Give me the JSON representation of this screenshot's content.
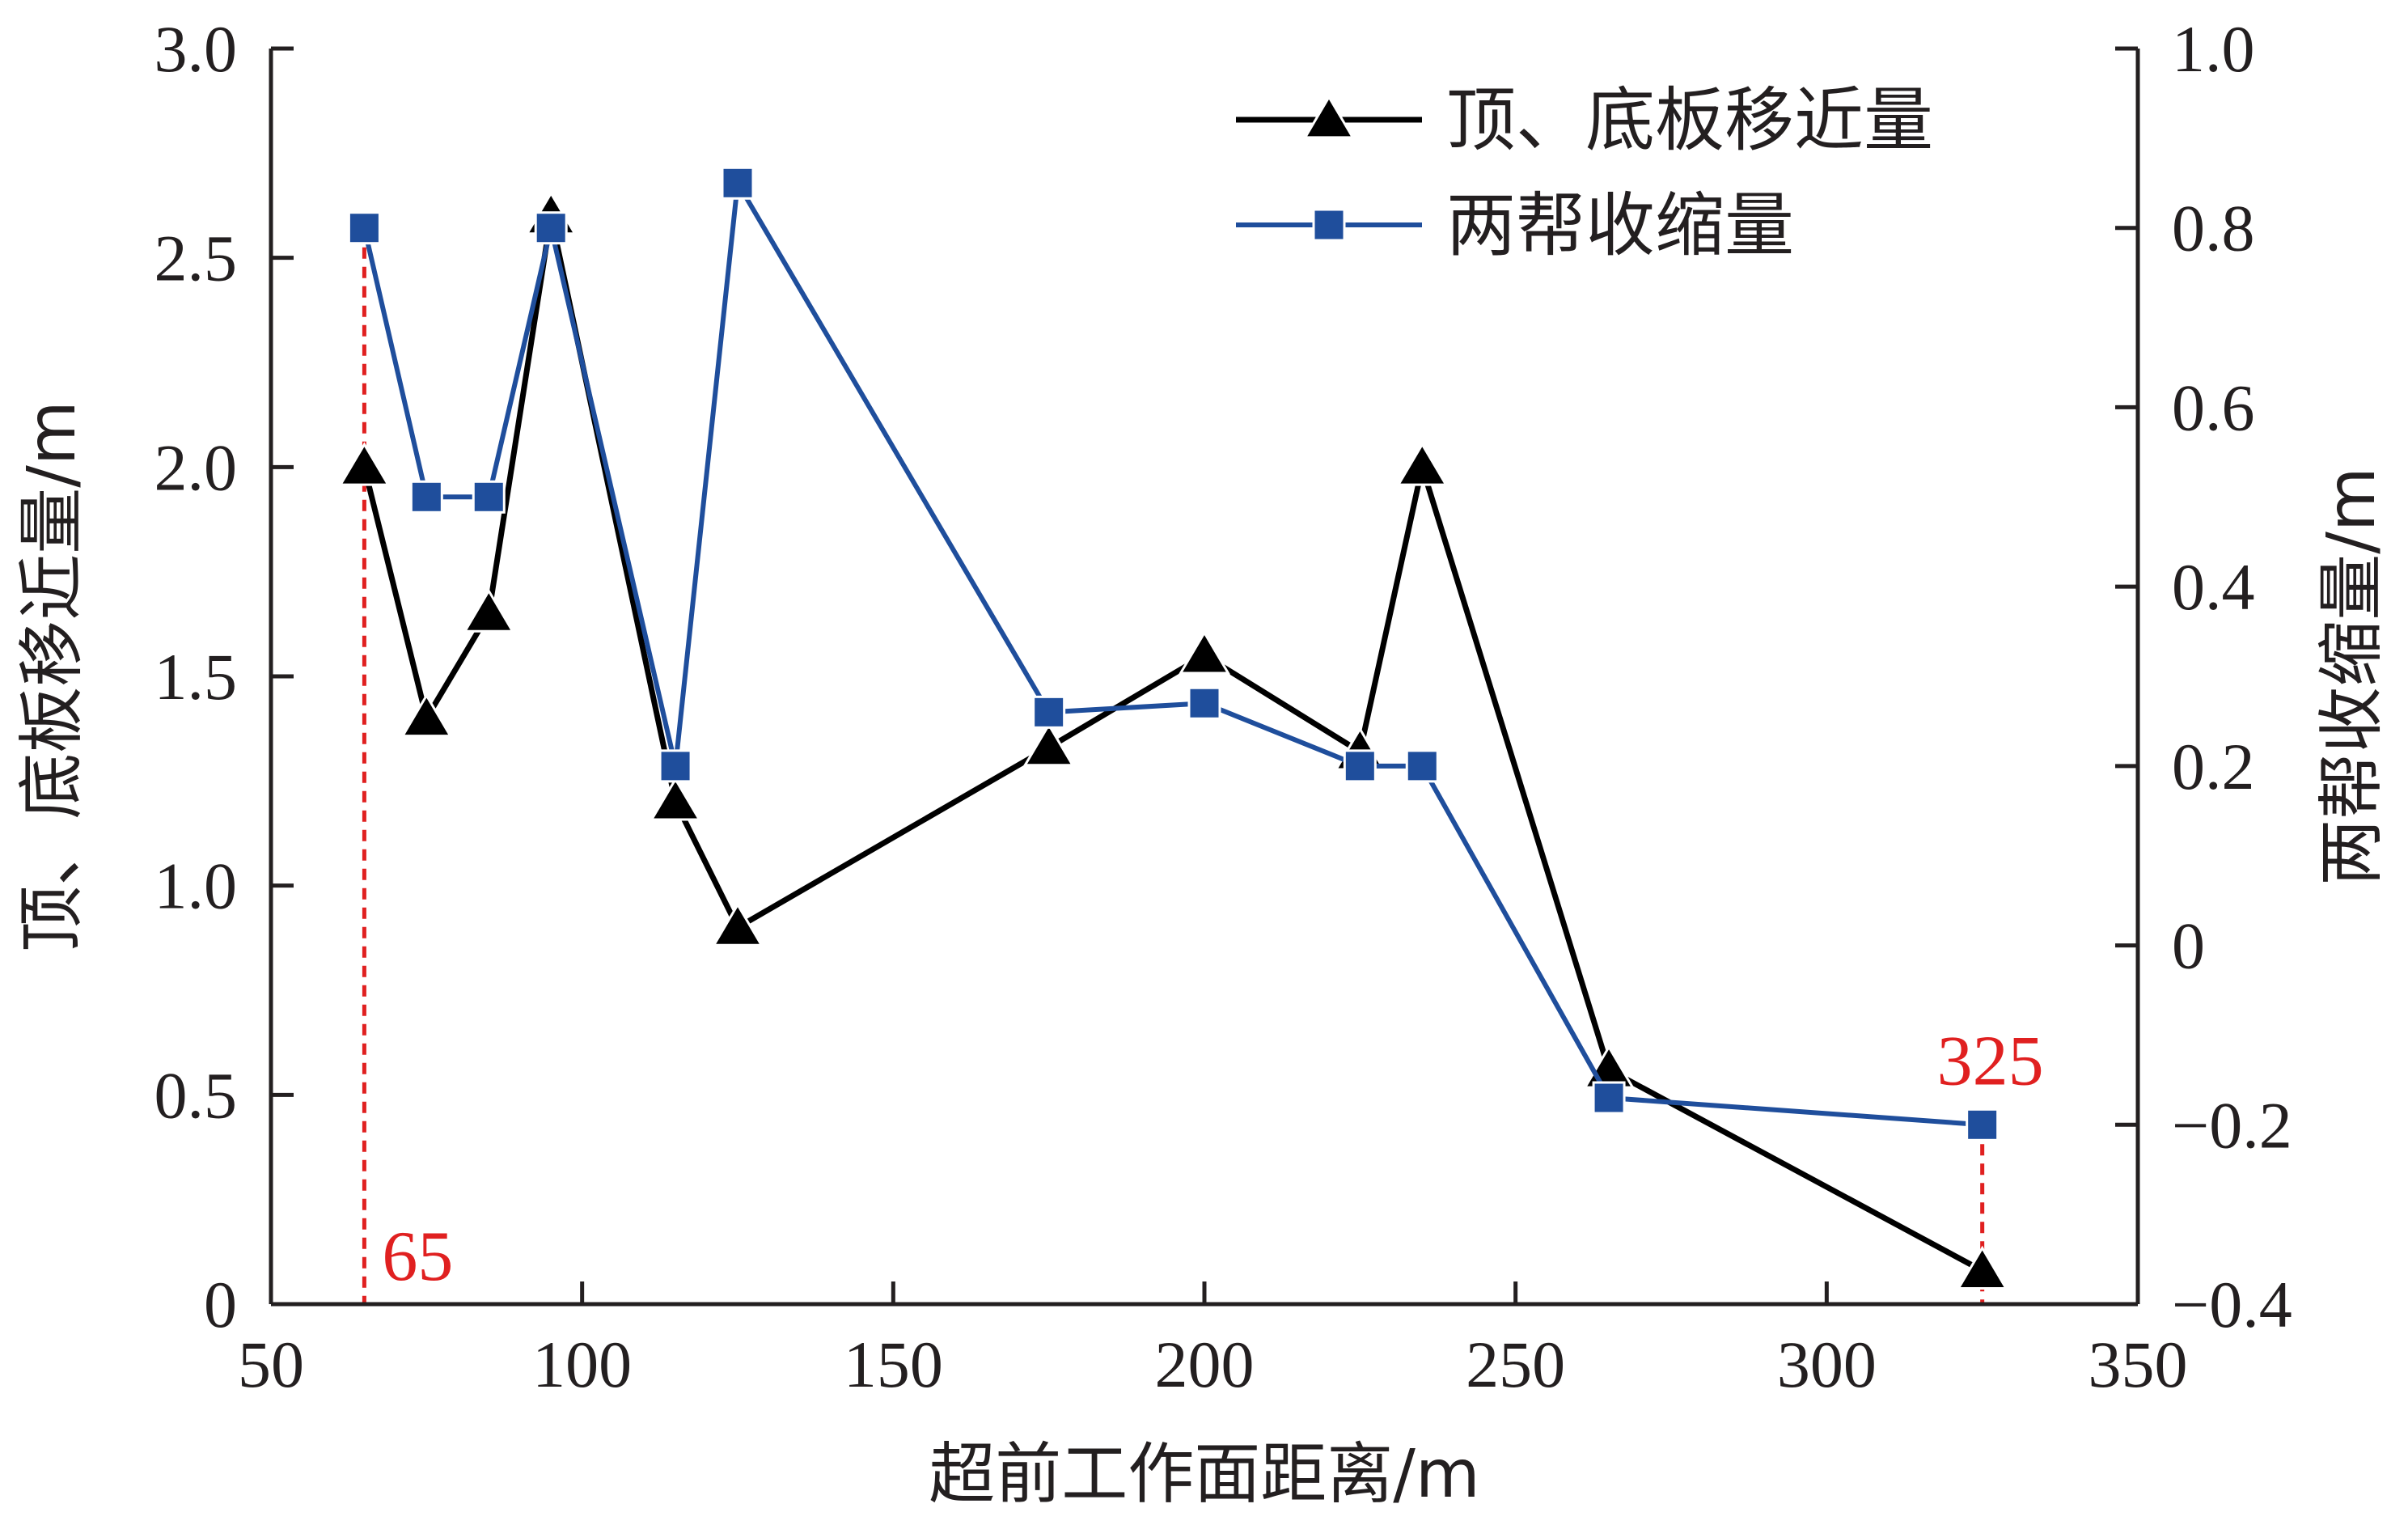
{
  "chart_data": {
    "type": "line",
    "xlabel": "超前工作面距离/m",
    "ylabel": "顶、底板移近量/m",
    "y2label": "两帮收缩量/m",
    "xlim": [
      50,
      350
    ],
    "ylim": [
      0,
      3.0
    ],
    "y2lim": [
      -0.4,
      1.0
    ],
    "x_ticks": [
      "50",
      "100",
      "150",
      "200",
      "250",
      "300",
      "350"
    ],
    "x_tick_values": [
      50,
      100,
      150,
      200,
      250,
      300,
      350
    ],
    "y_ticks": [
      "0",
      "0.5",
      "1.0",
      "1.5",
      "2.0",
      "2.5",
      "3.0"
    ],
    "y_tick_values": [
      0,
      0.5,
      1.0,
      1.5,
      2.0,
      2.5,
      3.0
    ],
    "y2_ticks": [
      "−0.4",
      "−0.2",
      "0",
      "0.2",
      "0.4",
      "0.6",
      "0.8",
      "1.0"
    ],
    "y2_tick_values": [
      -0.4,
      -0.2,
      0,
      0.2,
      0.4,
      0.6,
      0.8,
      1.0
    ],
    "legend_position": "top-right",
    "grid": false,
    "series": [
      {
        "name": "顶、底板移近量",
        "axis": "left",
        "marker": "triangle",
        "color": "#000000",
        "x": [
          65,
          75,
          85,
          95,
          115,
          125,
          175,
          200,
          225,
          235,
          265,
          325
        ],
        "values": [
          2.0,
          1.4,
          1.65,
          2.6,
          1.2,
          0.9,
          1.33,
          1.55,
          1.32,
          2.0,
          0.56,
          0.08
        ]
      },
      {
        "name": "两帮收缩量",
        "axis": "right",
        "marker": "square",
        "color": "#1f4e9c",
        "x": [
          65,
          75,
          85,
          95,
          115,
          125,
          175,
          200,
          225,
          235,
          265,
          325
        ],
        "values": [
          0.8,
          0.5,
          0.5,
          0.8,
          0.2,
          0.85,
          0.26,
          0.27,
          0.2,
          0.2,
          -0.17,
          -0.2
        ]
      }
    ],
    "annotations": [
      {
        "text": "65",
        "x": 65,
        "color": "#e02020"
      },
      {
        "text": "325",
        "x": 325,
        "color": "#e02020"
      }
    ]
  }
}
